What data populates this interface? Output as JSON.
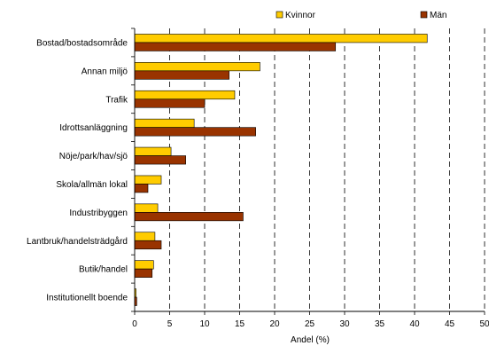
{
  "chart_data": {
    "type": "bar",
    "orientation": "horizontal",
    "categories": [
      "Bostad/bostadsområde",
      "Annan miljö",
      "Trafik",
      "Idrottsanläggning",
      "Nöje/park/hav/sjö",
      "Skola/allmän lokal",
      "Industribyggen",
      "Lantbruk/handelsträdgård",
      "Butik/handel",
      "Institutionellt boende"
    ],
    "series": [
      {
        "name": "Kvinnor",
        "color": "#FFCC00",
        "values": [
          41.8,
          17.9,
          14.3,
          8.5,
          5.2,
          3.8,
          3.3,
          2.9,
          2.7,
          0.2
        ]
      },
      {
        "name": "Män",
        "color": "#993300",
        "values": [
          28.7,
          13.5,
          10.0,
          17.3,
          7.3,
          1.9,
          15.5,
          3.8,
          2.5,
          0.3
        ]
      }
    ],
    "xlabel": "Andel (%)",
    "ylabel": "",
    "xlim": [
      0,
      50
    ],
    "xticks": [
      0,
      5,
      10,
      15,
      20,
      25,
      30,
      35,
      40,
      45,
      50
    ],
    "grid": "vertical dashed",
    "legend": "top"
  }
}
